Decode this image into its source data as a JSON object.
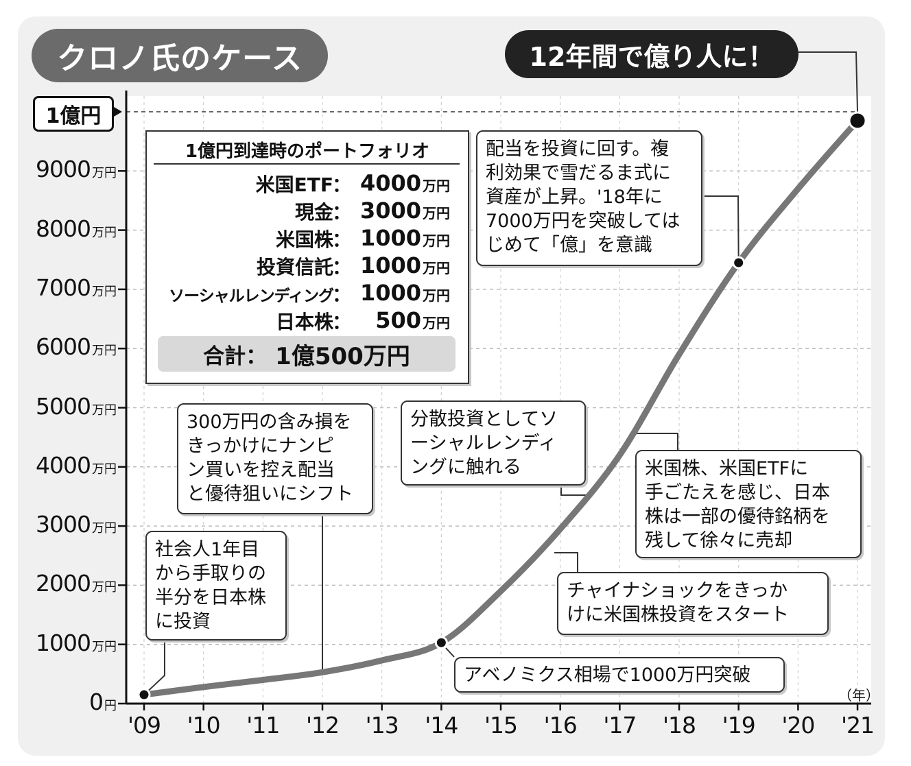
{
  "header": {
    "title": "クロノ氏のケース",
    "headline": "12年間で億り人に！",
    "target_label": "1億円"
  },
  "chart_data": {
    "type": "line",
    "y_unit": "万円",
    "x_unit": "（年）",
    "ylim": [
      0,
      10000
    ],
    "x_ticks": [
      "'09",
      "'10",
      "'11",
      "'12",
      "'13",
      "'14",
      "'15",
      "'16",
      "'17",
      "'18",
      "'19",
      "'20",
      "'21"
    ],
    "y_ticks": [
      {
        "value": 0,
        "num": "0",
        "unit": "円"
      },
      {
        "value": 1000,
        "num": "1000",
        "unit": "万円"
      },
      {
        "value": 2000,
        "num": "2000",
        "unit": "万円"
      },
      {
        "value": 3000,
        "num": "3000",
        "unit": "万円"
      },
      {
        "value": 4000,
        "num": "4000",
        "unit": "万円"
      },
      {
        "value": 5000,
        "num": "5000",
        "unit": "万円"
      },
      {
        "value": 6000,
        "num": "6000",
        "unit": "万円"
      },
      {
        "value": 7000,
        "num": "7000",
        "unit": "万円"
      },
      {
        "value": 8000,
        "num": "8000",
        "unit": "万円"
      },
      {
        "value": 9000,
        "num": "9000",
        "unit": "万円"
      }
    ],
    "target_value": 10000,
    "series": [
      {
        "x": [
          2009,
          2010,
          2011,
          2012,
          2013,
          2014,
          2015,
          2016,
          2017,
          2018,
          2019,
          2020,
          2021
        ],
        "values": [
          150,
          280,
          400,
          530,
          730,
          1030,
          1900,
          2950,
          4200,
          5900,
          7450,
          8700,
          9850
        ]
      }
    ],
    "markers": [
      {
        "x": 2009,
        "y": 150
      },
      {
        "x": 2014,
        "y": 1030
      },
      {
        "x": 2019,
        "y": 7450
      },
      {
        "x": 2021,
        "y": 9850
      }
    ]
  },
  "portfolio": {
    "title": "1億円到達時のポートフォリオ",
    "rows": [
      {
        "label": "米国ETF",
        "value": "4000",
        "unit": "万円"
      },
      {
        "label": "現金",
        "value": "3000",
        "unit": "万円"
      },
      {
        "label": "米国株",
        "value": "1000",
        "unit": "万円"
      },
      {
        "label": "投資信託",
        "value": "1000",
        "unit": "万円"
      },
      {
        "label": "ソーシャルレンディング",
        "value": "1000",
        "unit": "万円"
      },
      {
        "label": "日本株",
        "value": "500",
        "unit": "万円"
      }
    ],
    "colon": "：",
    "total_label": "合計：",
    "total_value": "1億500万円"
  },
  "annotations": {
    "a2009": [
      "社会人1年目",
      "から手取りの",
      "半分を日本株",
      "に投資"
    ],
    "a2012": [
      "300万円の含み損を",
      "きっかけにナンピ",
      "ン買いを控え配当",
      "と優待狙いにシフト"
    ],
    "a2014": [
      "アベノミクス相場で1000万円突破"
    ],
    "a2015": [
      "チャイナショックをきっか",
      "けに米国株投資をスタート"
    ],
    "a2016": [
      "分散投資としてソ",
      "ーシャルレンディ",
      "ングに触れる"
    ],
    "a2017": [
      "米国株、米国ETFに",
      "手ごたえを感じ、日本",
      "株は一部の優待銘柄を",
      "残して徐々に売却"
    ],
    "a2019": [
      "配当を投資に回す。複",
      "利効果で雪だるま式に",
      "資産が上昇。'18年に",
      "7000万円を突破しては",
      "じめて「億」を意識"
    ]
  }
}
